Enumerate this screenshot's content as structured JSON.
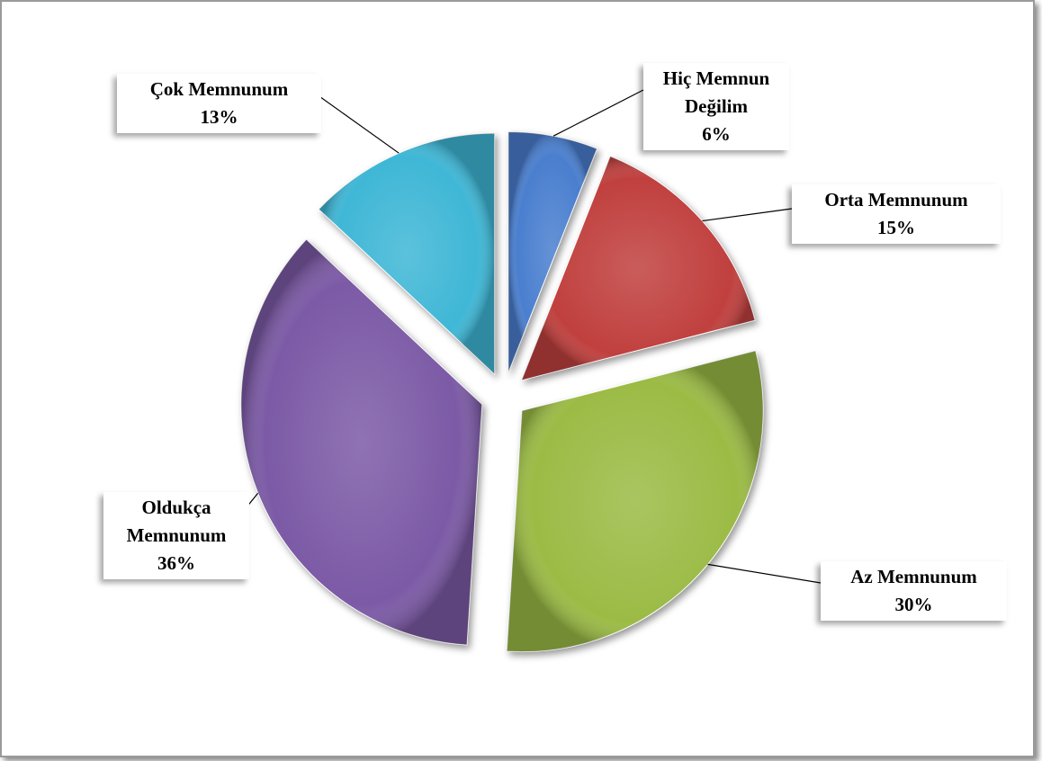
{
  "chart_data": {
    "type": "pie",
    "categories": [
      "Hiç Memnun Değilim",
      "Orta Memnunum",
      "Az Memnunum",
      "Oldukça Memnunum",
      "Çok Memnunum"
    ],
    "values": [
      6,
      15,
      30,
      36,
      13
    ],
    "value_labels": [
      "6%",
      "15%",
      "30%",
      "36%",
      "13%"
    ],
    "colors": [
      "#4a7fcf",
      "#c0403e",
      "#9bbb45",
      "#7c5aa6",
      "#3fb7d6"
    ]
  }
}
